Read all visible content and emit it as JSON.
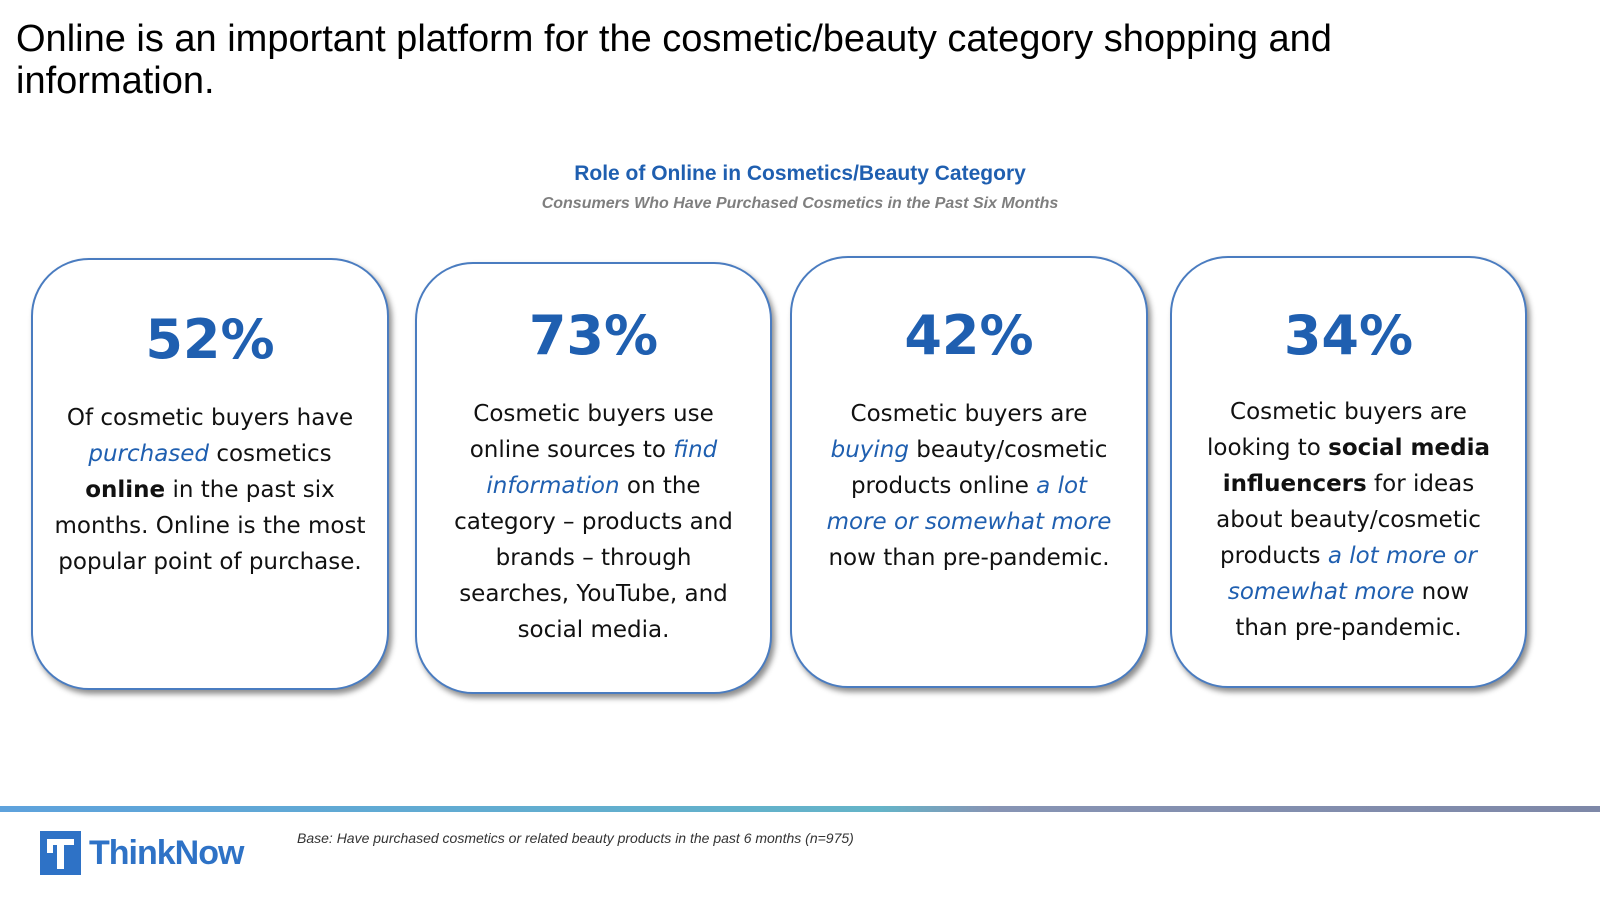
{
  "slide": {
    "title": "Online is an important platform for the cosmetic/beauty category shopping and information."
  },
  "chart": {
    "title": "Role of Online in Cosmetics/Beauty Category",
    "subtitle": "Consumers Who Have Purchased Cosmetics in the Past Six Months"
  },
  "cards": [
    {
      "percent": "52%",
      "t1": "Of cosmetic buyers have ",
      "t2": "purchased",
      "t3": " cosmetics ",
      "t4": "online",
      "t5": " in the past six months. Online is the most popular point of purchase."
    },
    {
      "percent": "73%",
      "t1": "Cosmetic buyers use online sources to ",
      "t2": "find information",
      "t3": " on the category – products and brands – through searches, YouTube, and social media."
    },
    {
      "percent": "42%",
      "t1": "Cosmetic buyers are ",
      "t2": "buying",
      "t3": " beauty/cosmetic products online ",
      "t4": "a lot more or somewhat more",
      "t5": " now than pre-pandemic."
    },
    {
      "percent": "34%",
      "t1": "Cosmetic buyers are looking to ",
      "t2": "social media influencers",
      "t3": " for ideas about beauty/cosmetic products ",
      "t4": "a lot more or somewhat more",
      "t5": " now than pre-pandemic."
    }
  ],
  "footer": {
    "logo_text": "ThinkNow",
    "base_note": "Base: Have purchased cosmetics or related beauty products in the past 6 months (n=975)"
  },
  "colors": {
    "accent_blue": "#1f5fb0",
    "border_blue": "#4a7cc0",
    "logo_blue": "#2e72c6",
    "subtitle_gray": "#7f7f7f"
  },
  "icons": {
    "logo": "thinknow-logo-icon"
  }
}
